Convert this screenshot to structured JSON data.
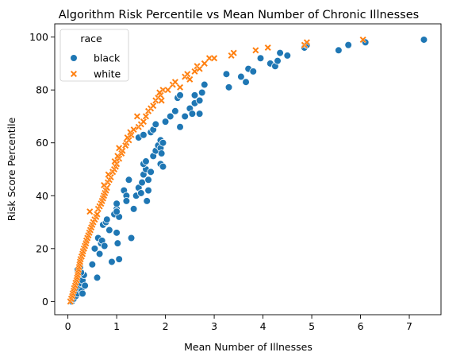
{
  "chart_data": {
    "type": "scatter",
    "title": "Algorithm Risk Percentile vs Mean Number of Chronic Illnesses",
    "xlabel": "Mean Number of Illnesses",
    "ylabel": "Risk Score Percentile",
    "xlim": [
      -0.27,
      7.65
    ],
    "ylim": [
      -5,
      105
    ],
    "xticks": [
      0,
      1,
      2,
      3,
      4,
      5,
      6,
      7
    ],
    "yticks": [
      0,
      20,
      40,
      60,
      80,
      100
    ],
    "grid": false,
    "legend": {
      "title": "race",
      "placement": "top-left"
    },
    "series": [
      {
        "name": "black",
        "marker": "circle",
        "color": "#1f77b4",
        "points": [
          [
            0.08,
            0
          ],
          [
            0.12,
            1
          ],
          [
            0.16,
            2
          ],
          [
            0.2,
            3
          ],
          [
            0.22,
            5
          ],
          [
            0.28,
            4
          ],
          [
            0.3,
            3
          ],
          [
            0.26,
            7
          ],
          [
            0.24,
            9
          ],
          [
            0.3,
            8
          ],
          [
            0.33,
            10
          ],
          [
            0.27,
            11
          ],
          [
            0.2,
            12
          ],
          [
            0.35,
            6
          ],
          [
            0.25,
            13
          ],
          [
            0.5,
            14
          ],
          [
            0.6,
            9
          ],
          [
            0.55,
            20
          ],
          [
            0.62,
            24
          ],
          [
            0.65,
            18
          ],
          [
            0.68,
            22
          ],
          [
            0.7,
            23
          ],
          [
            0.75,
            21
          ],
          [
            0.72,
            29
          ],
          [
            0.78,
            30
          ],
          [
            0.8,
            31
          ],
          [
            0.85,
            27
          ],
          [
            0.9,
            15
          ],
          [
            1.0,
            26
          ],
          [
            1.02,
            22
          ],
          [
            1.05,
            16
          ],
          [
            0.95,
            33
          ],
          [
            1.0,
            35
          ],
          [
            1.0,
            37
          ],
          [
            1.05,
            32
          ],
          [
            1.0,
            34
          ],
          [
            1.15,
            42
          ],
          [
            1.2,
            40
          ],
          [
            1.25,
            46
          ],
          [
            1.2,
            38
          ],
          [
            1.3,
            24
          ],
          [
            1.35,
            35
          ],
          [
            1.4,
            40
          ],
          [
            1.45,
            43
          ],
          [
            1.5,
            41
          ],
          [
            1.52,
            45
          ],
          [
            1.55,
            48
          ],
          [
            1.6,
            50
          ],
          [
            1.62,
            38
          ],
          [
            1.65,
            42
          ],
          [
            1.55,
            52
          ],
          [
            1.6,
            53
          ],
          [
            1.65,
            46
          ],
          [
            1.7,
            49
          ],
          [
            1.75,
            55
          ],
          [
            1.8,
            57
          ],
          [
            1.85,
            59
          ],
          [
            1.9,
            61
          ],
          [
            1.9,
            52
          ],
          [
            1.95,
            51
          ],
          [
            1.9,
            58
          ],
          [
            1.92,
            56
          ],
          [
            1.95,
            60
          ],
          [
            1.45,
            62
          ],
          [
            1.55,
            63
          ],
          [
            1.7,
            64
          ],
          [
            1.75,
            65
          ],
          [
            1.8,
            67
          ],
          [
            2.0,
            68
          ],
          [
            2.1,
            70
          ],
          [
            2.25,
            77
          ],
          [
            2.3,
            78
          ],
          [
            2.2,
            72
          ],
          [
            2.3,
            66
          ],
          [
            2.4,
            70
          ],
          [
            2.5,
            73
          ],
          [
            2.6,
            75
          ],
          [
            2.6,
            78
          ],
          [
            2.55,
            71
          ],
          [
            2.7,
            76
          ],
          [
            2.75,
            79
          ],
          [
            2.8,
            82
          ],
          [
            2.7,
            71
          ],
          [
            3.25,
            86
          ],
          [
            3.3,
            81
          ],
          [
            3.55,
            85
          ],
          [
            3.65,
            83
          ],
          [
            3.7,
            88
          ],
          [
            3.8,
            87
          ],
          [
            3.95,
            92
          ],
          [
            4.15,
            90
          ],
          [
            4.25,
            89
          ],
          [
            4.3,
            91
          ],
          [
            4.35,
            94
          ],
          [
            4.5,
            93
          ],
          [
            4.85,
            96
          ],
          [
            4.9,
            97
          ],
          [
            5.55,
            95
          ],
          [
            5.75,
            97
          ],
          [
            6.1,
            98
          ],
          [
            7.3,
            99
          ]
        ]
      },
      {
        "name": "white",
        "marker": "x",
        "color": "#ff7f0e",
        "points": [
          [
            0.05,
            0
          ],
          [
            0.07,
            1
          ],
          [
            0.09,
            2
          ],
          [
            0.1,
            3
          ],
          [
            0.12,
            4
          ],
          [
            0.13,
            5
          ],
          [
            0.15,
            6
          ],
          [
            0.16,
            7
          ],
          [
            0.18,
            8
          ],
          [
            0.19,
            9
          ],
          [
            0.2,
            10
          ],
          [
            0.21,
            11
          ],
          [
            0.22,
            12
          ],
          [
            0.23,
            13
          ],
          [
            0.24,
            14
          ],
          [
            0.25,
            15
          ],
          [
            0.26,
            16
          ],
          [
            0.28,
            17
          ],
          [
            0.3,
            18
          ],
          [
            0.31,
            19
          ],
          [
            0.33,
            20
          ],
          [
            0.35,
            21
          ],
          [
            0.37,
            22
          ],
          [
            0.38,
            23
          ],
          [
            0.4,
            24
          ],
          [
            0.42,
            25
          ],
          [
            0.44,
            26
          ],
          [
            0.46,
            27
          ],
          [
            0.48,
            28
          ],
          [
            0.5,
            29
          ],
          [
            0.52,
            30
          ],
          [
            0.55,
            31
          ],
          [
            0.58,
            32
          ],
          [
            0.6,
            33
          ],
          [
            0.45,
            34
          ],
          [
            0.62,
            35
          ],
          [
            0.65,
            36
          ],
          [
            0.68,
            37
          ],
          [
            0.7,
            38
          ],
          [
            0.72,
            39
          ],
          [
            0.74,
            40
          ],
          [
            0.76,
            41
          ],
          [
            0.78,
            42
          ],
          [
            0.8,
            43
          ],
          [
            0.74,
            44
          ],
          [
            0.82,
            45
          ],
          [
            0.85,
            46
          ],
          [
            0.88,
            47
          ],
          [
            0.83,
            48
          ],
          [
            0.92,
            49
          ],
          [
            0.95,
            50
          ],
          [
            0.98,
            51
          ],
          [
            1.0,
            52
          ],
          [
            0.96,
            53
          ],
          [
            1.05,
            54
          ],
          [
            1.02,
            55
          ],
          [
            1.1,
            56
          ],
          [
            1.12,
            57
          ],
          [
            1.05,
            58
          ],
          [
            1.18,
            59
          ],
          [
            1.2,
            60
          ],
          [
            1.25,
            61
          ],
          [
            1.22,
            62
          ],
          [
            1.3,
            63
          ],
          [
            1.28,
            64
          ],
          [
            1.35,
            65
          ],
          [
            1.45,
            66
          ],
          [
            1.5,
            67
          ],
          [
            1.55,
            68
          ],
          [
            1.42,
            70
          ],
          [
            1.6,
            70
          ],
          [
            1.65,
            72
          ],
          [
            1.7,
            73
          ],
          [
            1.75,
            74
          ],
          [
            1.8,
            76
          ],
          [
            1.85,
            77
          ],
          [
            1.9,
            78
          ],
          [
            1.95,
            80
          ],
          [
            2.05,
            80
          ],
          [
            2.15,
            82
          ],
          [
            2.2,
            83
          ],
          [
            1.88,
            79
          ],
          [
            1.92,
            76
          ],
          [
            2.3,
            81
          ],
          [
            2.4,
            85
          ],
          [
            2.45,
            86
          ],
          [
            2.5,
            84
          ],
          [
            2.6,
            87
          ],
          [
            2.65,
            89
          ],
          [
            2.7,
            88
          ],
          [
            2.8,
            90
          ],
          [
            2.9,
            92
          ],
          [
            3.0,
            92
          ],
          [
            3.35,
            93
          ],
          [
            3.4,
            94
          ],
          [
            3.85,
            95
          ],
          [
            4.1,
            96
          ],
          [
            4.85,
            97
          ],
          [
            4.9,
            98
          ],
          [
            6.05,
            99
          ]
        ]
      }
    ]
  }
}
